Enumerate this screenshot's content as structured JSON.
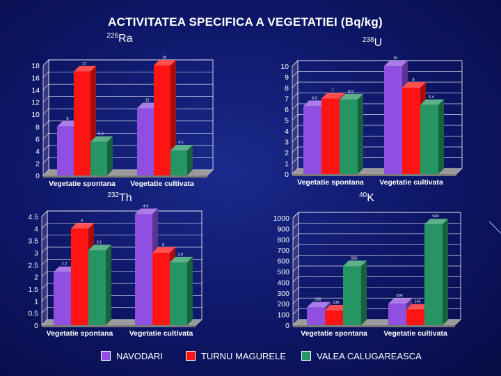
{
  "title": "ACTIVITATEA SPECIFICA A VEGETATIEI (Bq/kg)",
  "colors": {
    "NAVODARI": "#8f4fe0",
    "TURNU MAGURELE": "#ff1414",
    "VALEA CALUGAREASCA": "#259563",
    "grid": "#ffffff",
    "floor": "#9a9a9a"
  },
  "legend": [
    {
      "name": "NAVODARI",
      "color": "#8f4fe0"
    },
    {
      "name": "TURNU MAGURELE",
      "color": "#ff1414"
    },
    {
      "name": "VALEA CALUGAREASCA",
      "color": "#259563"
    }
  ],
  "chart_data": [
    {
      "type": "bar",
      "title_sup": "226",
      "title": "Ra",
      "categories": [
        "Vegetatie spontana",
        "Vegetatie cultivata"
      ],
      "series": [
        {
          "name": "NAVODARI",
          "values": [
            8,
            11
          ]
        },
        {
          "name": "TURNU MAGURELE",
          "values": [
            17,
            18
          ]
        },
        {
          "name": "VALEA CALUGAREASCA",
          "values": [
            5.5,
            4.1
          ]
        }
      ],
      "data_labels": [
        [
          "8",
          "17",
          "5.5"
        ],
        [
          "11",
          "18",
          "4.1"
        ]
      ],
      "yticks": [
        "0",
        "2",
        "4",
        "6",
        "8",
        "10",
        "12",
        "14",
        "16",
        "18"
      ],
      "ylim": [
        0,
        18
      ]
    },
    {
      "type": "bar",
      "title_sup": "238",
      "title": "U",
      "categories": [
        "Vegetatie spontana",
        "Vegetatie cultivata"
      ],
      "series": [
        {
          "name": "NAVODARI",
          "values": [
            6.3,
            10
          ]
        },
        {
          "name": "TURNU MAGURELE",
          "values": [
            7,
            8
          ]
        },
        {
          "name": "VALEA CALUGAREASCA",
          "values": [
            6.9,
            6.4
          ]
        }
      ],
      "data_labels": [
        [
          "6.3",
          "7",
          "6.9"
        ],
        [
          "10",
          "8",
          "6.4"
        ]
      ],
      "yticks": [
        "0",
        "1",
        "2",
        "3",
        "4",
        "5",
        "6",
        "7",
        "8",
        "9",
        "10"
      ],
      "ylim": [
        0,
        10
      ]
    },
    {
      "type": "bar",
      "title_sup": "232",
      "title": "Th",
      "categories": [
        "Vegetatie spontana",
        "Vegetatie cultivata"
      ],
      "series": [
        {
          "name": "NAVODARI",
          "values": [
            2.2,
            4.6
          ]
        },
        {
          "name": "TURNU MAGURELE",
          "values": [
            4,
            3
          ]
        },
        {
          "name": "VALEA CALUGAREASCA",
          "values": [
            3.1,
            2.6
          ]
        }
      ],
      "data_labels": [
        [
          "2.2",
          "4",
          "3.1"
        ],
        [
          "4.6",
          "3",
          "2.6"
        ]
      ],
      "yticks": [
        "0",
        "0.5",
        "1",
        "1.5",
        "2",
        "2.5",
        "3",
        "3.5",
        "4",
        "4.5"
      ],
      "ylim": [
        0,
        4.5
      ]
    },
    {
      "type": "bar",
      "title_sup": "40",
      "title": "K",
      "categories": [
        "Vegetatie spontana",
        "Vegetatie cultivata"
      ],
      "series": [
        {
          "name": "NAVODARI",
          "values": [
            165,
            200
          ]
        },
        {
          "name": "TURNU MAGURELE",
          "values": [
            136,
            145
          ]
        },
        {
          "name": "VALEA CALUGAREASCA",
          "values": [
            550,
            940
          ]
        }
      ],
      "data_labels": [
        [
          "165",
          "136",
          "550"
        ],
        [
          "200",
          "145",
          "940"
        ]
      ],
      "yticks": [
        "0",
        "100",
        "200",
        "300",
        "400",
        "500",
        "600",
        "700",
        "800",
        "900",
        "1000"
      ],
      "ylim": [
        0,
        1000
      ]
    }
  ]
}
